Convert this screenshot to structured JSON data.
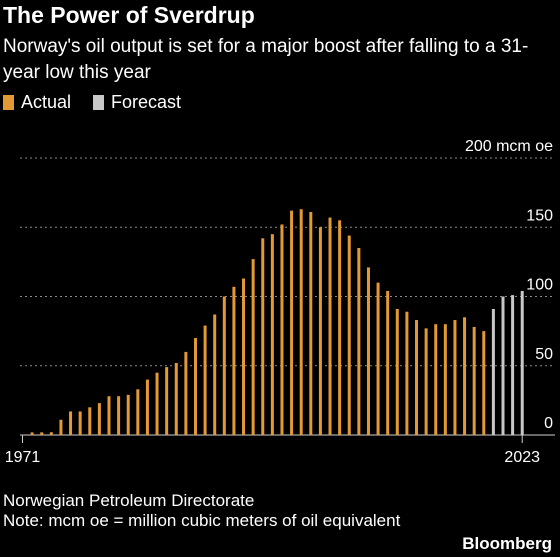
{
  "header": {
    "title": "The Power of Sverdrup",
    "subtitle": "Norway's oil output is set for a major boost after falling to a 31-year low this year"
  },
  "legend": {
    "actual_label": "Actual",
    "forecast_label": "Forecast"
  },
  "colors": {
    "actual": "#e39a35",
    "forecast": "#c8c8c8",
    "grid": "#8a8a8a",
    "background": "#000000"
  },
  "footer": {
    "source": "Norwegian Petroleum Directorate",
    "note": "Note: mcm oe = million cubic meters of oil equivalent",
    "brand": "Bloomberg"
  },
  "chart_data": {
    "type": "bar",
    "title": "The Power of Sverdrup",
    "xlabel": "",
    "ylabel": "",
    "y_unit_label": "200 mcm oe",
    "ylim": [
      0,
      200
    ],
    "yticks": [
      0,
      50,
      100,
      150,
      200
    ],
    "ytick_labels": [
      "0",
      "50",
      "100",
      "150",
      "200 mcm oe"
    ],
    "x_labels": [
      "1971",
      "2023"
    ],
    "grid": true,
    "legend_position": "top-left",
    "series": [
      {
        "name": "Actual",
        "x": [
          1971,
          1972,
          1973,
          1974,
          1975,
          1976,
          1977,
          1978,
          1979,
          1980,
          1981,
          1982,
          1983,
          1984,
          1985,
          1986,
          1987,
          1988,
          1989,
          1990,
          1991,
          1992,
          1993,
          1994,
          1995,
          1996,
          1997,
          1998,
          1999,
          2000,
          2001,
          2002,
          2003,
          2004,
          2005,
          2006,
          2007,
          2008,
          2009,
          2010,
          2011,
          2012,
          2013,
          2014,
          2015,
          2016,
          2017,
          2018,
          2019
        ],
        "values": [
          0.4,
          1.9,
          1.9,
          2,
          11,
          17,
          17,
          20,
          23,
          28,
          28,
          29,
          33,
          40,
          45,
          49,
          52,
          60,
          70,
          79,
          87,
          100,
          107,
          113,
          127,
          142,
          145,
          152,
          162,
          163,
          161,
          150,
          157,
          155,
          144,
          135,
          121,
          110,
          104,
          91,
          89,
          83,
          77,
          80,
          80,
          83,
          85,
          78,
          75
        ]
      },
      {
        "name": "Forecast",
        "x": [
          2020,
          2021,
          2022,
          2023
        ],
        "values": [
          91,
          100,
          101,
          104
        ]
      }
    ]
  }
}
